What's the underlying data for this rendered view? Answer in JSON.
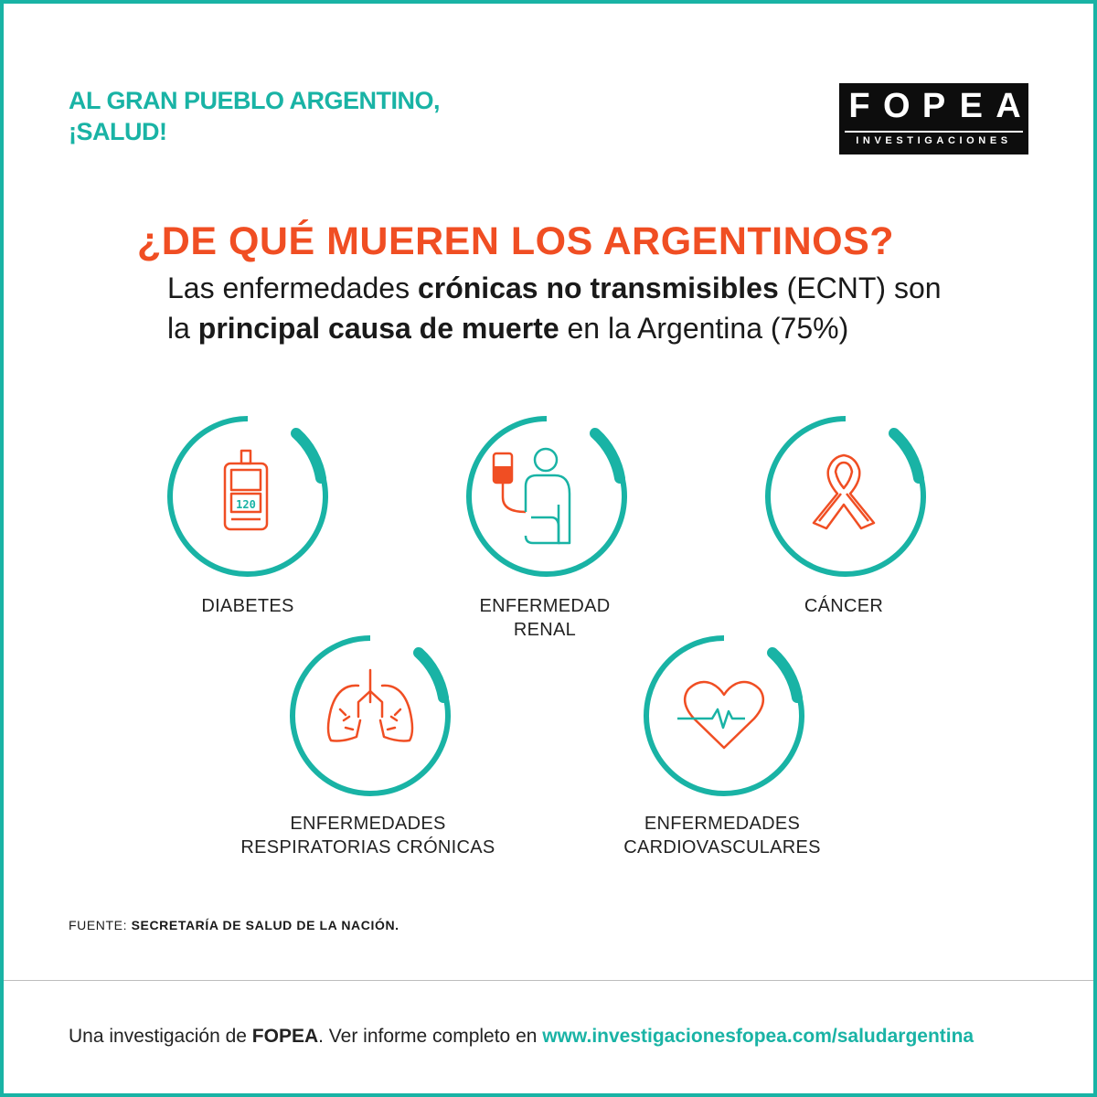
{
  "brand": {
    "tagline_line1": "AL GRAN PUEBLO ARGENTINO,",
    "tagline_line2": "¡SALUD!",
    "logo_letters": [
      "F",
      "O",
      "P",
      "E",
      "A"
    ],
    "logo_sub": "INVESTIGACIONES"
  },
  "headline": "¿DE QUÉ MUEREN LOS ARGENTINOS?",
  "subhead": {
    "p1": "Las enfermedades ",
    "b1": "crónicas no transmisibles",
    "p2": " (ECNT) son",
    "p3": "la ",
    "b2": "principal causa de muerte",
    "p4": " en la Argentina (75%)"
  },
  "diseases": [
    {
      "icon": "glucometer-icon",
      "lines": [
        "DIABETES"
      ],
      "reading": "120"
    },
    {
      "icon": "dialysis-icon",
      "lines": [
        "ENFERMEDAD",
        "RENAL"
      ]
    },
    {
      "icon": "cancer-ribbon-icon",
      "lines": [
        "CÁNCER"
      ]
    },
    {
      "icon": "lungs-icon",
      "lines": [
        "ENFERMEDADES",
        "RESPIRATORIAS CRÓNICAS"
      ]
    },
    {
      "icon": "heart-pulse-icon",
      "lines": [
        "ENFERMEDADES",
        "CARDIOVASCULARES"
      ]
    }
  ],
  "source": {
    "prefix": "FUENTE: ",
    "text": "SECRETARÍA DE SALUD DE LA NACIÓN."
  },
  "footer": {
    "prefix": "Una investigación de ",
    "brand": "FOPEA",
    "middle": ". Ver informe completo en ",
    "url": "www.investigacionesfopea.com/saludargentina"
  },
  "colors": {
    "teal": "#19b3a5",
    "orange": "#f04e23",
    "black": "#0d0d0d"
  }
}
